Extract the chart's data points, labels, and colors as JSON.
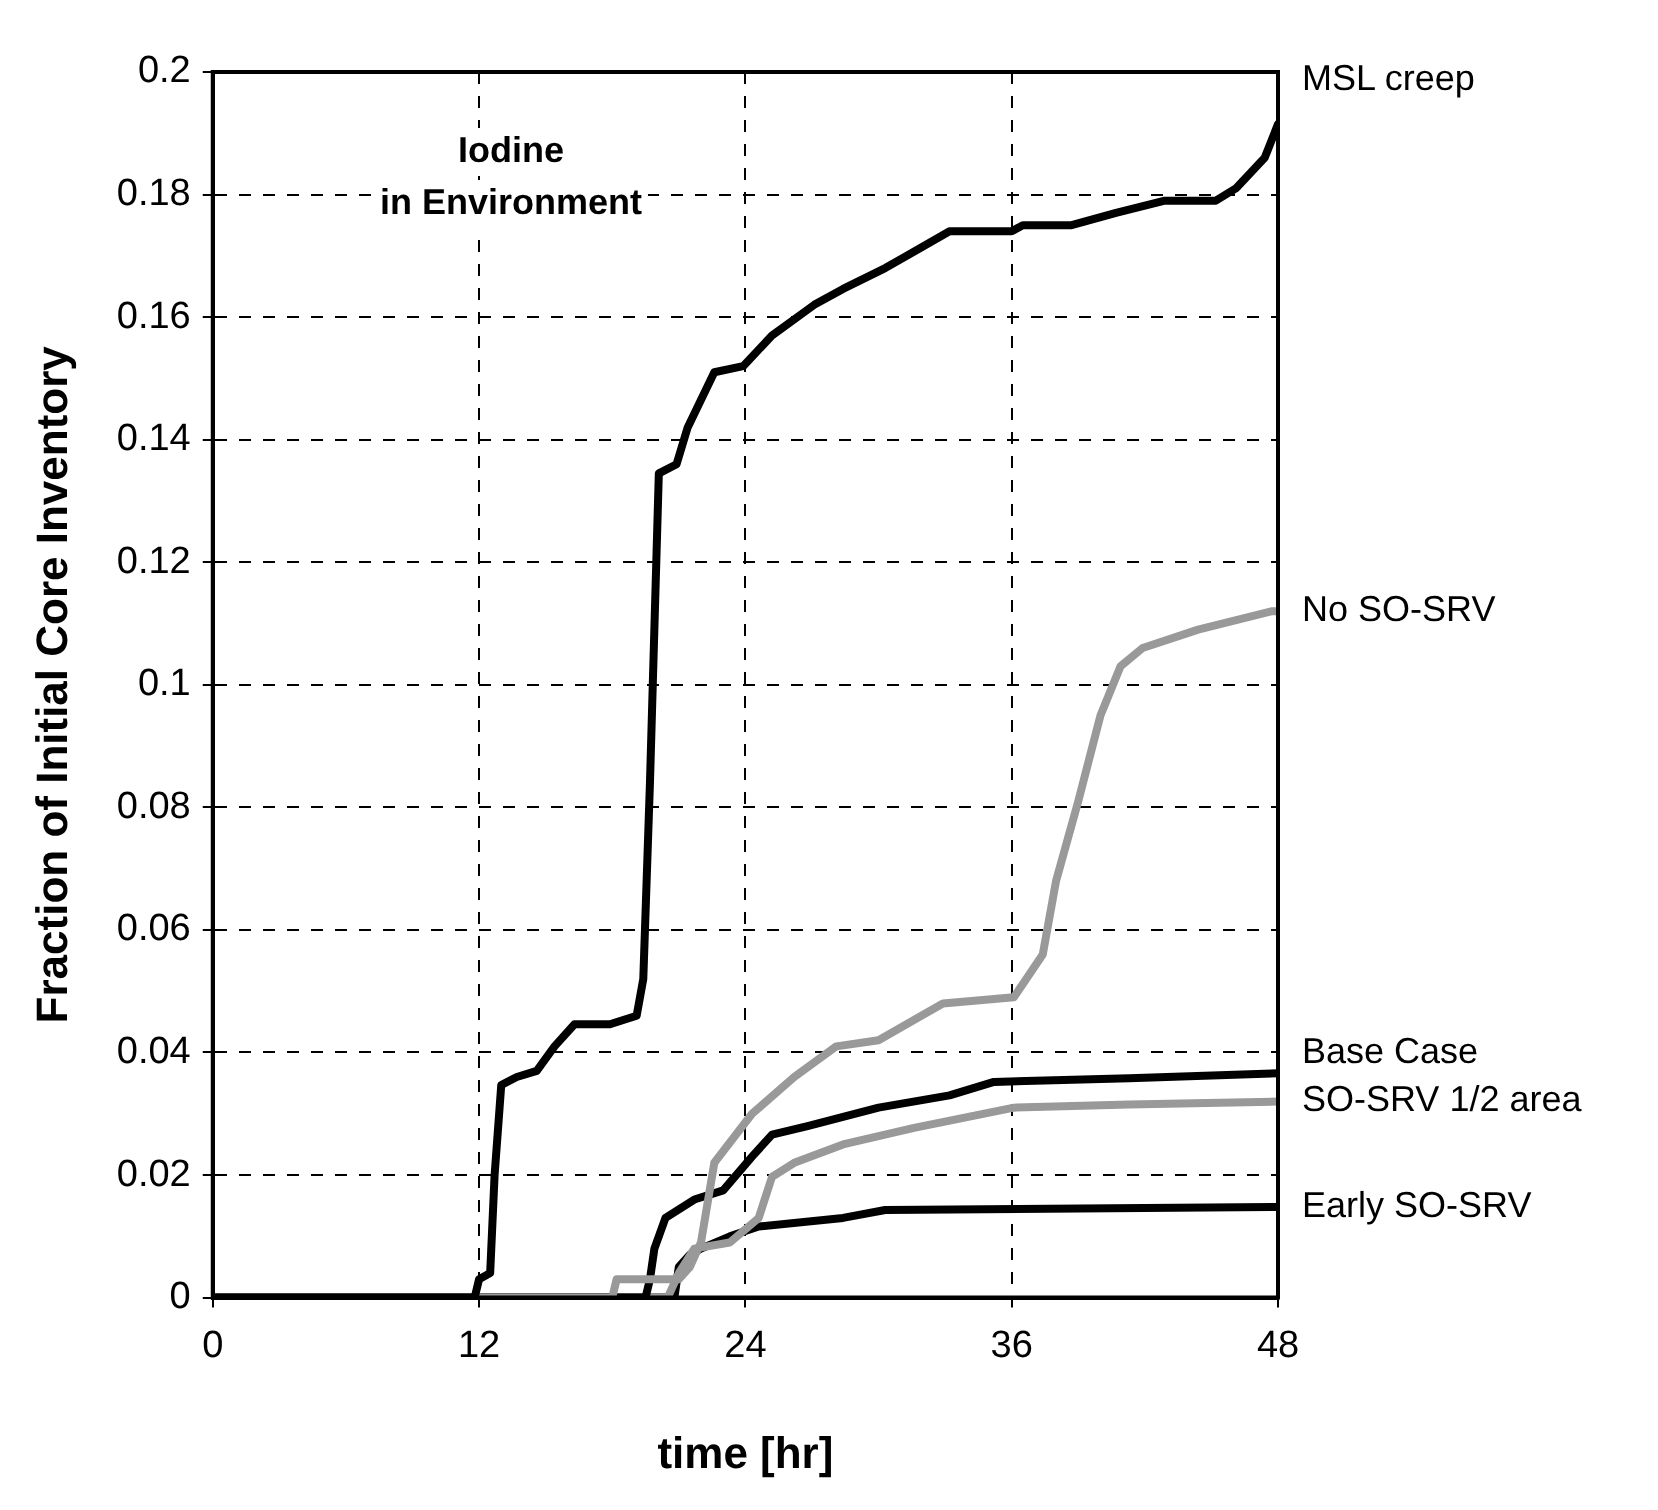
{
  "chart_data": {
    "type": "line",
    "xlabel": "time [hr]",
    "ylabel": "Fraction of Initial Core Inventory",
    "annotations": [
      "Iodine\nin Environment"
    ],
    "xlim": [
      0,
      48
    ],
    "xticks": [
      0,
      12,
      24,
      36,
      48
    ],
    "ylim": [
      0,
      0.2
    ],
    "yticks": [
      0,
      0.02,
      0.04,
      0.06,
      0.08,
      0.1,
      0.12,
      0.14,
      0.16,
      0.18,
      0.2
    ],
    "grid": true,
    "legend": false,
    "line_style": "solid",
    "marker": "none",
    "series": [
      {
        "name": "MSL creep",
        "color": "#000000",
        "x": [
          0,
          11.8,
          12,
          12.5,
          12.7,
          13,
          13.7,
          14.6,
          15.4,
          16.3,
          17.9,
          19.1,
          19.4,
          19.7,
          20.1,
          20.9,
          21.4,
          22.6,
          23.9,
          25.2,
          27.1,
          28.4,
          30.3,
          33.2,
          36,
          36.5,
          38.7,
          40.7,
          42.9,
          45.2,
          46.1,
          47.4,
          48
        ],
        "values": [
          0,
          0,
          0.003,
          0.004,
          0.02,
          0.0347,
          0.036,
          0.037,
          0.041,
          0.0446,
          0.0446,
          0.046,
          0.052,
          0.084,
          0.1345,
          0.136,
          0.142,
          0.151,
          0.152,
          0.157,
          0.162,
          0.1646,
          0.168,
          0.174,
          0.174,
          0.175,
          0.175,
          0.177,
          0.179,
          0.179,
          0.181,
          0.186,
          0.1915
        ]
      },
      {
        "name": "No SO-SRV",
        "color": "#999999",
        "x": [
          0,
          18,
          18.2,
          21,
          21.5,
          22,
          22.6,
          24.3,
          26.2,
          28.1,
          30,
          32.9,
          36.1,
          37.4,
          38,
          39,
          40,
          40.9,
          41.9,
          44.4,
          47.7,
          48
        ],
        "values": [
          0,
          0,
          0.003,
          0.003,
          0.005,
          0.009,
          0.022,
          0.03,
          0.036,
          0.041,
          0.042,
          0.048,
          0.049,
          0.056,
          0.068,
          0.081,
          0.095,
          0.103,
          0.106,
          0.109,
          0.112,
          0.112
        ]
      },
      {
        "name": "Base Case",
        "color": "#000000",
        "x": [
          0,
          19.5,
          19.7,
          19.9,
          20.4,
          21.7,
          23,
          24.3,
          25.2,
          26.8,
          30,
          33.2,
          35.2,
          41.3,
          48
        ],
        "values": [
          0,
          0,
          0.003,
          0.008,
          0.013,
          0.016,
          0.0175,
          0.023,
          0.0266,
          0.028,
          0.031,
          0.033,
          0.0352,
          0.0358,
          0.0366
        ]
      },
      {
        "name": "SO-SRV 1/2 area",
        "color": "#999999",
        "x": [
          0,
          20.5,
          21,
          21.7,
          23.3,
          24.6,
          25.2,
          26.2,
          28.4,
          31.6,
          36.1,
          41.3,
          48
        ],
        "values": [
          0,
          0,
          0.004,
          0.008,
          0.009,
          0.013,
          0.0197,
          0.022,
          0.025,
          0.0277,
          0.031,
          0.0315,
          0.032
        ]
      },
      {
        "name": "Early SO-SRV",
        "color": "#000000",
        "x": [
          0,
          20.8,
          21,
          21.5,
          22,
          23.3,
          24.6,
          28.4,
          30.3,
          48
        ],
        "values": [
          0,
          0,
          0.005,
          0.007,
          0.008,
          0.01,
          0.0116,
          0.013,
          0.0143,
          0.0148
        ]
      }
    ]
  }
}
